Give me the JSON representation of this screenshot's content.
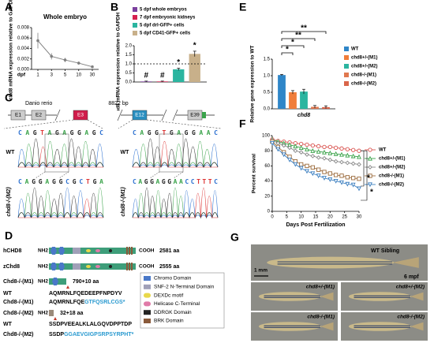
{
  "panels": [
    "A",
    "B",
    "C",
    "D",
    "E",
    "F",
    "G"
  ],
  "chart_data": [
    {
      "type": "line",
      "title": "Whole embryo",
      "x_label": "dpf",
      "y_label": "chd8 mRNA expression relative to GAPDH",
      "categories": [
        "1",
        "3",
        "5",
        "10",
        "30"
      ],
      "values": [
        0.0055,
        0.0025,
        0.0018,
        0.0012,
        0.0005
      ],
      "errors": [
        0.0015,
        0.0006,
        0.0004,
        0.0003,
        0.0002
      ],
      "color": "#808080",
      "ylim": [
        0,
        0.008
      ],
      "yticks": [
        {
          "value": 0,
          "label": "0.000"
        },
        {
          "value": 0.002,
          "label": "0.002"
        },
        {
          "value": 0.004,
          "label": "0.004"
        },
        {
          "value": 0.006,
          "label": "0.006"
        },
        {
          "value": 0.008,
          "label": "0.008"
        }
      ]
    },
    {
      "type": "bar",
      "y_label": "chd8 mRNA expression relative to GAPDH",
      "categories": [
        null
      ],
      "series": [
        {
          "name": "5 dpf whole embryos",
          "color": "#7b3f9e",
          "values": [
            0.03
          ],
          "errors": [
            0.02
          ]
        },
        {
          "name": "7 dpf embryonic kidneys",
          "color": "#d6204f",
          "values": [
            0.03
          ],
          "errors": [
            0.02
          ]
        },
        {
          "name": "5 dpf drl-GFP+ cells",
          "color": "#2bb5a0",
          "values": [
            0.7
          ],
          "errors": [
            0.06
          ]
        },
        {
          "name": "5 dpf CD41-GFP+ cells",
          "color": "#c8b08a",
          "values": [
            1.55
          ],
          "errors": [
            0.15
          ]
        }
      ],
      "annotations": [
        "#",
        "#",
        "*",
        "*"
      ],
      "reference_line": 1,
      "ylim": [
        0,
        2
      ],
      "yticks": [
        {
          "value": 0,
          "label": "0.0"
        },
        {
          "value": 0.5,
          "label": "0.5"
        },
        {
          "value": 1,
          "label": "1.0"
        },
        {
          "value": 1.5,
          "label": "1.5"
        },
        {
          "value": 2,
          "label": "2.0"
        }
      ]
    },
    {
      "type": "bar",
      "y_label": "Relative gene expression to WT",
      "categories": [
        "chd8"
      ],
      "series": [
        {
          "name": "WT",
          "color": "#2f86c8",
          "values": [
            1.02
          ],
          "errors": [
            0.02
          ]
        },
        {
          "name": "chd8+/-(M1)",
          "color": "#f07d3a",
          "values": [
            0.5
          ],
          "errors": [
            0.05
          ]
        },
        {
          "name": "chd8+/-(M2)",
          "color": "#2bb5a0",
          "values": [
            0.52
          ],
          "errors": [
            0.07
          ]
        },
        {
          "name": "chd8-/-(M1)",
          "color": "#e0784f",
          "values": [
            0.06
          ],
          "errors": [
            0.04
          ]
        },
        {
          "name": "chd8-/-(M2)",
          "color": "#d9654a",
          "values": [
            0.05
          ],
          "errors": [
            0.04
          ]
        }
      ],
      "annotations": [
        "*",
        "*",
        "**",
        "**"
      ],
      "ylim": [
        0,
        1.5
      ],
      "yticks": [
        {
          "value": 0,
          "label": "0.0"
        },
        {
          "value": 0.5,
          "label": "0.5"
        },
        {
          "value": 1,
          "label": "1.0"
        },
        {
          "value": 1.5,
          "label": "1.5"
        }
      ]
    },
    {
      "type": "line",
      "x_label": "Days Post Fertilization",
      "y_label": "Percent survival",
      "x": [
        0,
        2,
        4,
        6,
        8,
        10,
        12,
        14,
        16,
        18,
        20,
        22,
        24,
        26,
        28,
        30
      ],
      "series": [
        {
          "name": "WT",
          "color": "#d9534f",
          "marker": "circle",
          "values": [
            95,
            93,
            92,
            91,
            90,
            89,
            88,
            87,
            86,
            85,
            85,
            84,
            83,
            82,
            81,
            80
          ]
        },
        {
          "name": "chd8+/-(M1)",
          "color": "#3aa34a",
          "marker": "triangle",
          "values": [
            95,
            92,
            90,
            88,
            86,
            84,
            82,
            80,
            79,
            78,
            77,
            76,
            75,
            74,
            73,
            72
          ]
        },
        {
          "name": "chd8+/-(M2)",
          "color": "#888888",
          "marker": "diamond",
          "values": [
            94,
            90,
            87,
            84,
            80,
            78,
            75,
            73,
            71,
            70,
            68,
            66,
            65,
            64,
            63,
            62
          ]
        },
        {
          "name": "chd8-/-(M1)",
          "color": "#9c6b3c",
          "marker": "square",
          "values": [
            92,
            85,
            78,
            72,
            66,
            62,
            60,
            58,
            55,
            52,
            50,
            48,
            47,
            45,
            44,
            43
          ]
        },
        {
          "name": "chd8-/-(M2)",
          "color": "#3c7fc0",
          "marker": "triangle-down",
          "values": [
            90,
            82,
            75,
            68,
            62,
            57,
            53,
            50,
            47,
            44,
            42,
            40,
            38,
            36,
            35,
            30
          ]
        }
      ],
      "annotations": [
        "*",
        "*"
      ],
      "xlim": [
        0,
        30
      ],
      "xticks": [
        0,
        5,
        10,
        15,
        20,
        25,
        30
      ],
      "ylim": [
        0,
        100
      ],
      "yticks": [
        0,
        20,
        40,
        60,
        80,
        100
      ]
    }
  ],
  "gene_diagram": {
    "species": "Danio rerio",
    "length": "8822 bp",
    "exons": [
      "E1",
      "E2",
      "E3",
      "E12",
      "E39"
    ],
    "left": {
      "wt_label": "WT",
      "mut_label": "chd8-/-(M2)",
      "wt_seq": "CAGTAGAGGAGC",
      "mut_seq": "CAGGAGGCGCTGA"
    },
    "right": {
      "wt_label": "WT",
      "mut_label": "chd8-/-(M1)",
      "wt_seq": "CAGGTGAGGAAC",
      "mut_seq": "CAGGAGGAACCTTTC"
    }
  },
  "protein_diagram": {
    "nh2": "NH2",
    "cooh": "COOH",
    "rows": [
      {
        "name": "hCHD8",
        "length": "2581 aa"
      },
      {
        "name": "zChd8",
        "length": "2555 aa"
      },
      {
        "name": "Chd8-/-(M1)",
        "length": "790+10 aa"
      },
      {
        "name": "Chd8-/-(M2)",
        "length": "32+18 aa"
      }
    ],
    "m1_wt_label": "WT",
    "m1_wt_seq": "AQMRNLFQEDEEPFNPDYV",
    "m1_mut_label": "Chd8-/-(M1)",
    "m1_mut_seq": [
      "AQMRNLFQE",
      "GTFQSRLCGS*"
    ],
    "m2_wt_label": "WT",
    "m2_wt_seq": "SSDPVEEALKLALGQVDPPTDP",
    "m2_mut_seq": [
      "SSDP",
      "GGAEVGIGPSRPSYRPHT*"
    ],
    "legend": [
      "Chromo Domain",
      "SNF-2 N-Terminal Domain",
      "DEXDc motif",
      "Helicase C-Terminal",
      "DDRGK Domain",
      "BRK Domain"
    ]
  },
  "photo": {
    "main": "WT Sibling",
    "scale": "1 mm",
    "age": "6 mpf",
    "labels": [
      "chd8+/-(M1)",
      "chd8+/-(M2)",
      "chd8-/-(M1)",
      "chd8-/-(M2)"
    ]
  }
}
